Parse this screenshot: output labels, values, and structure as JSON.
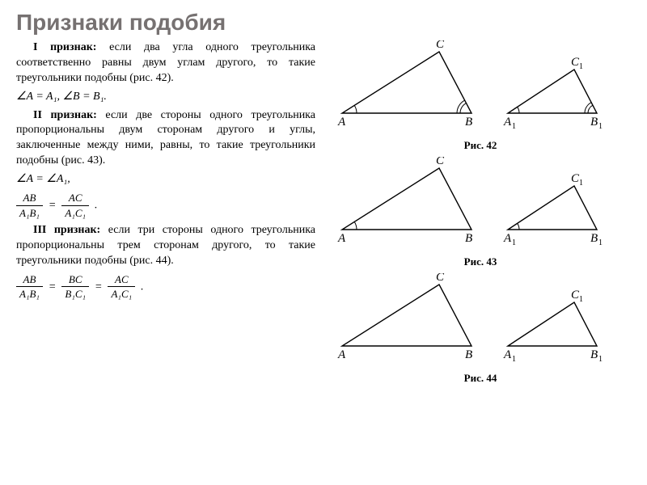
{
  "title": "Признаки подобия",
  "text": {
    "t1_head": "I признак:",
    "t1_body": "если два угла одного треугольника соответственно равны двум углам другого, то такие треугольники подобны (рис. 42).",
    "t1_math": "∠A = A₁,  ∠B = B₁.",
    "t2_head": "II признак:",
    "t2_body": "если две стороны одного треугольника пропорциональны двум сторонам другого и углы, заключенные между ними, равны, то такие треугольники подобны (рис. 43).",
    "t2_math_a": "∠A = ∠A₁,",
    "f1_num": "AB",
    "f1_den": "A₁B₁",
    "f2_num": "AC",
    "f2_den": "A₁C₁",
    "t3_head": "III признак:",
    "t3_body": "если три стороны одного треугольника пропорциональны трем сторонам другого, то такие треугольники подобны (рис. 44).",
    "f3_num": "AB",
    "f3_den": "A₁B₁",
    "f4_num": "BC",
    "f4_den": "B₁C₁",
    "f5_num": "AC",
    "f5_den": "A₁C₁"
  },
  "labels": {
    "A": "A",
    "B": "B",
    "C": "C",
    "A1a": "A",
    "A1b": "1",
    "B1a": "B",
    "B1b": "1",
    "C1a": "C",
    "C1b": "1"
  },
  "captions": {
    "r42": "Рис. 42",
    "r43": "Рис. 43",
    "r44": "Рис. 44"
  },
  "geom": {
    "big": {
      "A": [
        10,
        90
      ],
      "B": [
        170,
        90
      ],
      "C": [
        130,
        14
      ]
    },
    "small": {
      "A": [
        10,
        90
      ],
      "B": [
        120,
        90
      ],
      "C": [
        92,
        36
      ]
    },
    "stroke": "#000000",
    "sw": 1.4,
    "fontsize": 15
  }
}
